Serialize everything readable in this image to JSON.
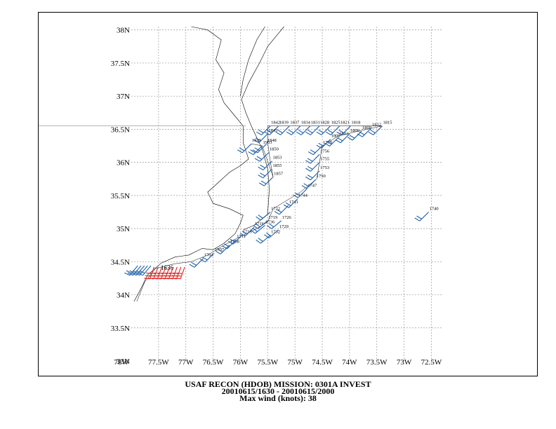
{
  "map": {
    "lat_labels": [
      "38N",
      "37.5N",
      "37N",
      "36.5N",
      "36N",
      "35.5N",
      "35N",
      "34.5N",
      "34N",
      "33.5N",
      "33N"
    ],
    "lat_values": [
      38,
      37.5,
      37,
      36.5,
      36,
      35.5,
      35,
      34.5,
      34,
      33.5,
      33
    ],
    "lon_labels": [
      "78W",
      "77.5W",
      "77W",
      "76.5W",
      "76W",
      "75.5W",
      "75W",
      "74.5W",
      "74W",
      "73.5W",
      "73W",
      "72.5W"
    ],
    "lon_values": [
      -78,
      -77.5,
      -77,
      -76.5,
      -76,
      -75.5,
      -75,
      -74.5,
      -74,
      -73.5,
      -73,
      -72.5
    ],
    "extent": {
      "lon": [
        -78,
        -72.3
      ],
      "lat": [
        33,
        38.05
      ]
    },
    "grid": true,
    "colors": {
      "barb": "#1f5fa8",
      "barb_max": "#e02020",
      "coast": "#000000",
      "grid": "#999999"
    },
    "observations": [
      {
        "t": "1704",
        "lon": -76.68,
        "lat": 34.55,
        "d": 225,
        "s": 15
      },
      {
        "t": "1707",
        "lon": -76.48,
        "lat": 34.63,
        "d": 225,
        "s": 15
      },
      {
        "t": "1708",
        "lon": -76.2,
        "lat": 34.75,
        "d": 225,
        "s": 20
      },
      {
        "t": "1711",
        "lon": -76.08,
        "lat": 34.83,
        "d": 225,
        "s": 20
      },
      {
        "t": "1713",
        "lon": -75.97,
        "lat": 34.9,
        "d": 225,
        "s": 20
      },
      {
        "t": "1716",
        "lon": -75.75,
        "lat": 35.02,
        "d": 225,
        "s": 20
      },
      {
        "t": "1719",
        "lon": -75.5,
        "lat": 35.12,
        "d": 230,
        "s": 20
      },
      {
        "t": "1722",
        "lon": -75.45,
        "lat": 35.25,
        "d": 230,
        "s": 20
      },
      {
        "t": "1726",
        "lon": -75.25,
        "lat": 35.12,
        "d": 230,
        "s": 20
      },
      {
        "t": "1729",
        "lon": -75.3,
        "lat": 34.98,
        "d": 230,
        "s": 20
      },
      {
        "t": "1732",
        "lon": -75.45,
        "lat": 34.9,
        "d": 230,
        "s": 20
      },
      {
        "t": "1736",
        "lon": -75.55,
        "lat": 35.05,
        "d": 230,
        "s": 20
      },
      {
        "t": "1741",
        "lon": -75.12,
        "lat": 35.35,
        "d": 225,
        "s": 20
      },
      {
        "t": "1744",
        "lon": -74.95,
        "lat": 35.45,
        "d": 225,
        "s": 20
      },
      {
        "t": "1747",
        "lon": -74.78,
        "lat": 35.6,
        "d": 225,
        "s": 20
      },
      {
        "t": "1750",
        "lon": -74.62,
        "lat": 35.74,
        "d": 225,
        "s": 20
      },
      {
        "t": "1753",
        "lon": -74.55,
        "lat": 35.87,
        "d": 225,
        "s": 20
      },
      {
        "t": "1755",
        "lon": -74.55,
        "lat": 36.0,
        "d": 225,
        "s": 20
      },
      {
        "t": "1756",
        "lon": -74.55,
        "lat": 36.12,
        "d": 225,
        "s": 20
      },
      {
        "t": "1758",
        "lon": -74.5,
        "lat": 36.25,
        "d": 225,
        "s": 20
      },
      {
        "t": "1800",
        "lon": -74.35,
        "lat": 36.35,
        "d": 225,
        "s": 20
      },
      {
        "t": "1803",
        "lon": -74.2,
        "lat": 36.38,
        "d": 225,
        "s": 20
      },
      {
        "t": "1806",
        "lon": -74.0,
        "lat": 36.43,
        "d": 225,
        "s": 20
      },
      {
        "t": "1809",
        "lon": -73.78,
        "lat": 36.47,
        "d": 225,
        "s": 20
      },
      {
        "t": "1812",
        "lon": -73.6,
        "lat": 36.52,
        "d": 225,
        "s": 20
      },
      {
        "t": "1815",
        "lon": -73.4,
        "lat": 36.55,
        "d": 225,
        "s": 20
      },
      {
        "t": "1818",
        "lon": -73.98,
        "lat": 36.55,
        "d": 225,
        "s": 20
      },
      {
        "t": "1821",
        "lon": -74.18,
        "lat": 36.55,
        "d": 225,
        "s": 20
      },
      {
        "t": "1825",
        "lon": -74.35,
        "lat": 36.55,
        "d": 225,
        "s": 20
      },
      {
        "t": "1828",
        "lon": -74.55,
        "lat": 36.55,
        "d": 225,
        "s": 20
      },
      {
        "t": "1831",
        "lon": -74.72,
        "lat": 36.55,
        "d": 225,
        "s": 20
      },
      {
        "t": "1834",
        "lon": -74.9,
        "lat": 36.55,
        "d": 225,
        "s": 20
      },
      {
        "t": "1837",
        "lon": -75.1,
        "lat": 36.55,
        "d": 225,
        "s": 20
      },
      {
        "t": "1839",
        "lon": -75.3,
        "lat": 36.55,
        "d": 225,
        "s": 20
      },
      {
        "t": "1842",
        "lon": -75.45,
        "lat": 36.55,
        "d": 225,
        "s": 20
      },
      {
        "t": "1845",
        "lon": -75.5,
        "lat": 36.43,
        "d": 225,
        "s": 20
      },
      {
        "t": "1848",
        "lon": -75.52,
        "lat": 36.28,
        "d": 225,
        "s": 20
      },
      {
        "t": "1850",
        "lon": -75.48,
        "lat": 36.15,
        "d": 225,
        "s": 20
      },
      {
        "t": "1853",
        "lon": -75.42,
        "lat": 36.02,
        "d": 225,
        "s": 20
      },
      {
        "t": "1855",
        "lon": -75.42,
        "lat": 35.9,
        "d": 225,
        "s": 20
      },
      {
        "t": "1857",
        "lon": -75.4,
        "lat": 35.78,
        "d": 225,
        "s": 20
      },
      {
        "t": "1903",
        "lon": -75.6,
        "lat": 36.25,
        "d": 225,
        "s": 15
      },
      {
        "t": "1911",
        "lon": -75.8,
        "lat": 36.28,
        "d": 225,
        "s": 15
      },
      {
        "t": "1740",
        "lon": -72.55,
        "lat": 35.25,
        "d": 225,
        "s": 20
      }
    ],
    "max_wind_cluster": {
      "lon": -77.28,
      "lat": 34.42
    },
    "max_cluster_label": "1636",
    "track": [
      [
        -77.9,
        33.9
      ],
      [
        -77.75,
        34.2
      ],
      [
        -77.55,
        34.4
      ],
      [
        -77.2,
        34.47
      ],
      [
        -76.9,
        34.5
      ],
      [
        -76.6,
        34.6
      ],
      [
        -76.3,
        34.75
      ],
      [
        -76.0,
        34.88
      ],
      [
        -75.7,
        35.0
      ],
      [
        -75.5,
        35.1
      ],
      [
        -75.4,
        35.3
      ],
      [
        -75.2,
        35.4
      ],
      [
        -74.9,
        35.55
      ],
      [
        -74.6,
        35.75
      ],
      [
        -74.55,
        36.0
      ],
      [
        -74.5,
        36.25
      ],
      [
        -74.2,
        36.4
      ],
      [
        -73.8,
        36.48
      ],
      [
        -73.4,
        36.55
      ],
      [
        -74.3,
        36.55
      ],
      [
        -75.0,
        36.55
      ],
      [
        -75.5,
        36.55
      ],
      [
        -75.5,
        36.3
      ],
      [
        -75.45,
        36.0
      ],
      [
        -75.4,
        35.78
      ],
      [
        -75.6,
        36.25
      ],
      [
        -75.8,
        36.28
      ]
    ]
  },
  "caption": {
    "line1": "USAF RECON (HDOB) MISSION:  0301A   INVEST",
    "line2": "20010615/1630 - 20010615/2000",
    "line3": "Max wind (knots):   38"
  }
}
